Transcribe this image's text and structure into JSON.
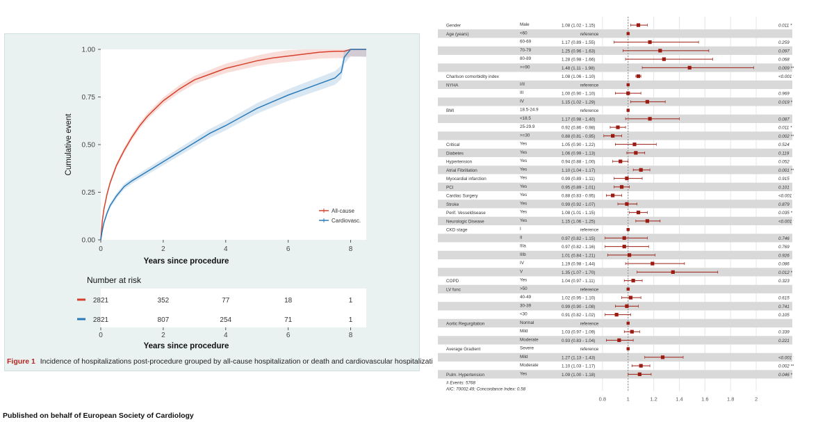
{
  "caption": {
    "label": "Figure 1",
    "text": "Incidence of hospitalizations post-procedure grouped by all-cause hospitalization or death and cardiovascular hospitalization or death."
  },
  "footer": "Published on behalf of European Society of Cardiology",
  "chart_data": [
    {
      "type": "line",
      "xlabel": "Years since procedure",
      "ylabel": "Cumulative event",
      "xlim": [
        0,
        8.5
      ],
      "ylim": [
        0,
        1
      ],
      "xticks": [
        "0",
        "2",
        "4",
        "6",
        "8"
      ],
      "yticks": [
        "0.00",
        "0.25",
        "0.50",
        "0.75",
        "1.00"
      ],
      "legend_position": "bottom-right",
      "colors": {
        "All-cause": "#d7402b",
        "Cardiovasc.": "#2a7ab8"
      },
      "series": [
        {
          "name": "All-cause",
          "x": [
            0,
            0.05,
            0.1,
            0.2,
            0.3,
            0.5,
            0.75,
            1,
            1.25,
            1.5,
            2,
            2.5,
            3,
            3.5,
            4,
            4.5,
            5,
            5.5,
            6,
            6.5,
            7,
            7.5,
            7.8,
            8,
            8.5
          ],
          "y": [
            0,
            0.1,
            0.16,
            0.24,
            0.3,
            0.39,
            0.47,
            0.54,
            0.6,
            0.65,
            0.73,
            0.79,
            0.84,
            0.87,
            0.9,
            0.92,
            0.94,
            0.955,
            0.965,
            0.975,
            0.985,
            0.99,
            0.99,
            1.0,
            1.0
          ]
        },
        {
          "name": "Cardiovasc.",
          "x": [
            0,
            0.05,
            0.1,
            0.2,
            0.3,
            0.5,
            0.75,
            1,
            1.5,
            2,
            2.5,
            3,
            3.5,
            4,
            4.5,
            5,
            5.5,
            6,
            6.5,
            7,
            7.5,
            7.7,
            7.8,
            8,
            8.5
          ],
          "y": [
            0,
            0.05,
            0.09,
            0.14,
            0.18,
            0.23,
            0.28,
            0.31,
            0.36,
            0.41,
            0.46,
            0.51,
            0.56,
            0.6,
            0.645,
            0.69,
            0.725,
            0.76,
            0.79,
            0.82,
            0.85,
            0.88,
            0.96,
            1.0,
            1.0
          ]
        }
      ]
    },
    {
      "type": "table",
      "title": "Number at risk",
      "xlabel": "Years since procedure",
      "x": [
        "0",
        "2",
        "4",
        "6",
        "8"
      ],
      "series": [
        {
          "name": "All-cause",
          "values": [
            "2821",
            "352",
            "77",
            "18",
            "1"
          ]
        },
        {
          "name": "Cardiovasc.",
          "values": [
            "2821",
            "807",
            "254",
            "71",
            "1"
          ]
        }
      ]
    },
    {
      "type": "scatter",
      "subtype": "forest",
      "xticks": [
        "0.8",
        "1",
        "1.2",
        "1.4",
        "1.6",
        "1.8",
        "2"
      ],
      "footnotes": [
        "# Events: 5768",
        "AIC: 70002.49; Concordance Index: 0.58"
      ],
      "rows": [
        {
          "var": "Gender",
          "level": "Male",
          "est_text": "1.08 (1.02 - 1.15)",
          "p": "0.011 *",
          "hr": 1.08,
          "lo": 1.02,
          "hi": 1.15
        },
        {
          "var": "Age (years)",
          "level": "<60",
          "est_text": "reference",
          "p": "",
          "hr": 1.0
        },
        {
          "var": "",
          "level": "60-69",
          "est_text": "1.17 (0.89 - 1.55)",
          "p": "0.259",
          "hr": 1.17,
          "lo": 0.89,
          "hi": 1.55
        },
        {
          "var": "",
          "level": "70-79",
          "est_text": "1.25 (0.96 - 1.63)",
          "p": "0.097",
          "hr": 1.25,
          "lo": 0.96,
          "hi": 1.63
        },
        {
          "var": "",
          "level": "80-89",
          "est_text": "1.28 (0.98 - 1.66)",
          "p": "0.068",
          "hr": 1.28,
          "lo": 0.98,
          "hi": 1.66
        },
        {
          "var": "",
          "level": ">=90",
          "est_text": "1.48 (1.11 - 1.98)",
          "p": "0.009 **",
          "hr": 1.48,
          "lo": 1.11,
          "hi": 1.98
        },
        {
          "var": "Charlson comorbidity index",
          "level": "",
          "est_text": "1.08 (1.06 - 1.10)",
          "p": "<0.001 ***",
          "hr": 1.08,
          "lo": 1.06,
          "hi": 1.1
        },
        {
          "var": "NYHA",
          "level": "I/II",
          "est_text": "reference",
          "p": "",
          "hr": 1.0
        },
        {
          "var": "",
          "level": "III",
          "est_text": "1.00 (0.90 - 1.10)",
          "p": "0.969",
          "hr": 1.0,
          "lo": 0.9,
          "hi": 1.1
        },
        {
          "var": "",
          "level": "IV",
          "est_text": "1.15 (1.02 - 1.29)",
          "p": "0.019 *",
          "hr": 1.15,
          "lo": 1.02,
          "hi": 1.29
        },
        {
          "var": "BMI",
          "level": "18.5-24.9",
          "est_text": "reference",
          "p": "",
          "hr": 1.0
        },
        {
          "var": "",
          "level": "<18.5",
          "est_text": "1.17 (0.98 - 1.40)",
          "p": "0.087",
          "hr": 1.17,
          "lo": 0.98,
          "hi": 1.4
        },
        {
          "var": "",
          "level": "25-29.9",
          "est_text": "0.92 (0.86 - 0.98)",
          "p": "0.011 *",
          "hr": 0.92,
          "lo": 0.86,
          "hi": 0.98
        },
        {
          "var": "",
          "level": ">=30",
          "est_text": "0.88 (0.81 - 0.95)",
          "p": "0.002 **",
          "hr": 0.88,
          "lo": 0.81,
          "hi": 0.95
        },
        {
          "var": "Critical",
          "level": "Yes",
          "est_text": "1.05 (0.90 - 1.22)",
          "p": "0.524",
          "hr": 1.05,
          "lo": 0.9,
          "hi": 1.22
        },
        {
          "var": "Diabetes",
          "level": "Yes",
          "est_text": "1.06 (0.99 - 1.13)",
          "p": "0.119",
          "hr": 1.06,
          "lo": 0.99,
          "hi": 1.13
        },
        {
          "var": "Hypertension",
          "level": "Yes",
          "est_text": "0.94 (0.88 - 1.00)",
          "p": "0.052",
          "hr": 0.94,
          "lo": 0.88,
          "hi": 1.0
        },
        {
          "var": "Atrial Fibrillation",
          "level": "Yes",
          "est_text": "1.10 (1.04 - 1.17)",
          "p": "0.001 **",
          "hr": 1.1,
          "lo": 1.04,
          "hi": 1.17
        },
        {
          "var": "Myocardial infarction",
          "level": "Yes",
          "est_text": "0.99 (0.89 - 1.11)",
          "p": "0.915",
          "hr": 0.99,
          "lo": 0.89,
          "hi": 1.11
        },
        {
          "var": "PCI",
          "level": "Yes",
          "est_text": "0.95 (0.89 - 1.01)",
          "p": "0.101",
          "hr": 0.95,
          "lo": 0.89,
          "hi": 1.01
        },
        {
          "var": "Cardiac Surgery",
          "level": "Yes",
          "est_text": "0.88 (0.83 - 0.95)",
          "p": "<0.001 ***",
          "hr": 0.88,
          "lo": 0.83,
          "hi": 0.95
        },
        {
          "var": "Stroke",
          "level": "Yes",
          "est_text": "0.99 (0.92 - 1.07)",
          "p": "0.879",
          "hr": 0.99,
          "lo": 0.92,
          "hi": 1.07
        },
        {
          "var": "Perif. Vesseldisease",
          "level": "Yes",
          "est_text": "1.08 (1.01 - 1.15)",
          "p": "0.035 *",
          "hr": 1.08,
          "lo": 1.01,
          "hi": 1.15
        },
        {
          "var": "Neurologic Disease",
          "level": "Yes",
          "est_text": "1.15 (1.06 - 1.25)",
          "p": "<0.001 ***",
          "hr": 1.15,
          "lo": 1.06,
          "hi": 1.25
        },
        {
          "var": "CKD stage",
          "level": "I",
          "est_text": "reference",
          "p": "",
          "hr": 1.0
        },
        {
          "var": "",
          "level": "II",
          "est_text": "0.97 (0.82 - 1.15)",
          "p": "0.746",
          "hr": 0.97,
          "lo": 0.82,
          "hi": 1.15
        },
        {
          "var": "",
          "level": "IIIa",
          "est_text": "0.97 (0.82 - 1.16)",
          "p": "0.769",
          "hr": 0.97,
          "lo": 0.82,
          "hi": 1.16
        },
        {
          "var": "",
          "level": "IIIb",
          "est_text": "1.01 (0.84 - 1.21)",
          "p": "0.926",
          "hr": 1.01,
          "lo": 0.84,
          "hi": 1.21
        },
        {
          "var": "",
          "level": "IV",
          "est_text": "1.19 (0.98 - 1.44)",
          "p": "0.086",
          "hr": 1.19,
          "lo": 0.98,
          "hi": 1.44
        },
        {
          "var": "",
          "level": "V",
          "est_text": "1.35 (1.07 - 1.70)",
          "p": "0.012 *",
          "hr": 1.35,
          "lo": 1.07,
          "hi": 1.7
        },
        {
          "var": "COPD",
          "level": "Yes",
          "est_text": "1.04 (0.97 - 1.11)",
          "p": "0.323",
          "hr": 1.04,
          "lo": 0.97,
          "hi": 1.11
        },
        {
          "var": "LV func",
          "level": ">50",
          "est_text": "reference",
          "p": "",
          "hr": 1.0
        },
        {
          "var": "",
          "level": "40-49",
          "est_text": "1.02 (0.95 - 1.10)",
          "p": "0.615",
          "hr": 1.02,
          "lo": 0.95,
          "hi": 1.1
        },
        {
          "var": "",
          "level": "30-39",
          "est_text": "0.99 (0.90 - 1.08)",
          "p": "0.741",
          "hr": 0.99,
          "lo": 0.9,
          "hi": 1.08
        },
        {
          "var": "",
          "level": "<30",
          "est_text": "0.91 (0.82 - 1.02)",
          "p": "0.105",
          "hr": 0.91,
          "lo": 0.82,
          "hi": 1.02
        },
        {
          "var": "Aortic Regurgitation",
          "level": "Normal",
          "est_text": "reference",
          "p": "",
          "hr": 1.0
        },
        {
          "var": "",
          "level": "Mild",
          "est_text": "1.03 (0.97 - 1.09)",
          "p": "0.339",
          "hr": 1.03,
          "lo": 0.97,
          "hi": 1.09
        },
        {
          "var": "",
          "level": "Moderate",
          "est_text": "0.93 (0.83 - 1.04)",
          "p": "0.221",
          "hr": 0.93,
          "lo": 0.83,
          "hi": 1.04
        },
        {
          "var": "Average Gradient",
          "level": "Severe",
          "est_text": "reference",
          "p": "",
          "hr": 1.0
        },
        {
          "var": "",
          "level": "Mild",
          "est_text": "1.27 (1.13 - 1.43)",
          "p": "<0.001 ***",
          "hr": 1.27,
          "lo": 1.13,
          "hi": 1.43
        },
        {
          "var": "",
          "level": "Moderate",
          "est_text": "1.10 (1.03 - 1.17)",
          "p": "0.002 **",
          "hr": 1.1,
          "lo": 1.03,
          "hi": 1.17
        },
        {
          "var": "Pulm. Hypertension",
          "level": "Yes",
          "est_text": "1.09 (1.00 - 1.18)",
          "p": "0.046 *",
          "hr": 1.09,
          "lo": 1.0,
          "hi": 1.18
        }
      ]
    }
  ]
}
